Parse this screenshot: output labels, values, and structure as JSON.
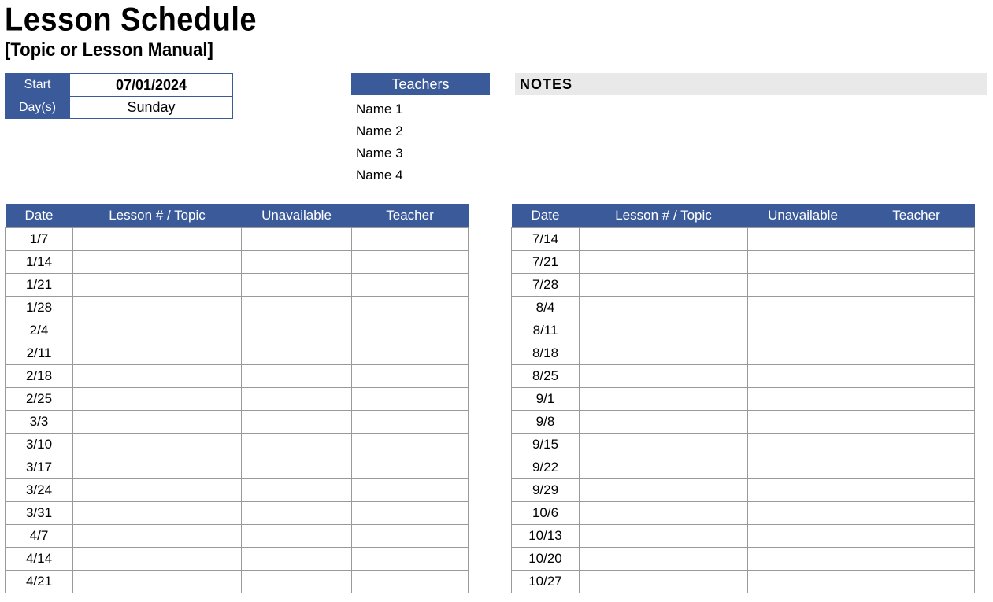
{
  "header": {
    "title": "Lesson Schedule",
    "subtitle": "[Topic or Lesson Manual]"
  },
  "start_block": {
    "start_label": "Start",
    "start_value": "07/01/2024",
    "days_label": "Day(s)",
    "days_value": "Sunday"
  },
  "teachers": {
    "header": "Teachers",
    "names": [
      "Name 1",
      "Name 2",
      "Name 3",
      "Name 4"
    ]
  },
  "notes": {
    "header": "NOTES"
  },
  "columns": {
    "date": "Date",
    "topic": "Lesson # / Topic",
    "unavailable": "Unavailable",
    "teacher": "Teacher"
  },
  "left_dates": [
    "1/7",
    "1/14",
    "1/21",
    "1/28",
    "2/4",
    "2/11",
    "2/18",
    "2/25",
    "3/3",
    "3/10",
    "3/17",
    "3/24",
    "3/31",
    "4/7",
    "4/14",
    "4/21"
  ],
  "right_dates": [
    "7/14",
    "7/21",
    "7/28",
    "8/4",
    "8/11",
    "8/18",
    "8/25",
    "9/1",
    "9/8",
    "9/15",
    "9/22",
    "9/29",
    "10/6",
    "10/13",
    "10/20",
    "10/27"
  ],
  "colors": {
    "header_blue": "#3a5a9a",
    "grid_gray": "#9a9a9a",
    "notes_bg": "#e9e9e9"
  }
}
